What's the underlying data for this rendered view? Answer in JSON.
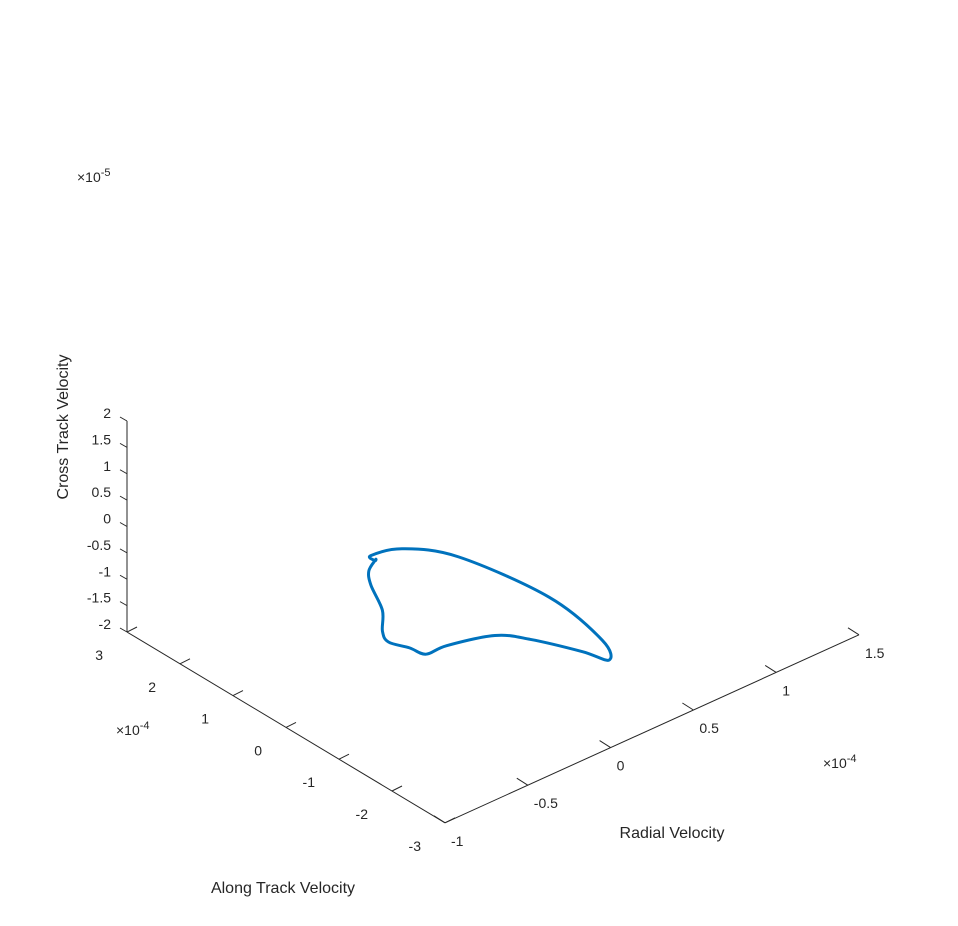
{
  "chart_data": {
    "type": "line",
    "projection": "3d",
    "title": "",
    "xlabel": "Radial Velocity",
    "ylabel": "Along Track Velocity",
    "zlabel": "Cross Track Velocity",
    "x_exponent": "×10-4",
    "y_exponent": "×10-4",
    "z_exponent": "×10-5",
    "x_exponent_base": "×10",
    "x_exponent_power": "-4",
    "y_exponent_base": "×10",
    "y_exponent_power": "-4",
    "z_exponent_base": "×10",
    "z_exponent_power": "-5",
    "xlim": [
      -1.0,
      1.5
    ],
    "ylim": [
      -3,
      3
    ],
    "zlim": [
      -2,
      2
    ],
    "x_ticks": [
      -1,
      -0.5,
      0,
      0.5,
      1,
      1.5
    ],
    "x_tick_labels": [
      "-1",
      "-0.5",
      "0",
      "0.5",
      "1",
      "1.5"
    ],
    "y_ticks": [
      -3,
      -2,
      -1,
      0,
      1,
      2,
      3
    ],
    "y_tick_labels": [
      "-3",
      "-2",
      "-1",
      "0",
      "1",
      "2",
      "3"
    ],
    "z_ticks": [
      -2,
      -1.5,
      -1,
      -0.5,
      0,
      0.5,
      1,
      1.5,
      2
    ],
    "z_tick_labels": [
      "-2",
      "-1.5",
      "-1",
      "-0.5",
      "0",
      "0.5",
      "1",
      "1.5",
      "2"
    ],
    "grid": false,
    "series": [
      {
        "color": "#0072BD",
        "points": [
          [
            0.33,
            -1.94,
            -1.45
          ],
          [
            0.45,
            -1.44,
            -1.55
          ],
          [
            0.59,
            0.0,
            -1.8
          ],
          [
            0.57,
            1.65,
            -2.0
          ],
          [
            0.41,
            2.2,
            -1.95
          ],
          [
            0.2,
            2.15,
            -1.75
          ],
          [
            0.05,
            1.6,
            -1.3
          ],
          [
            -0.2,
            0.81,
            -0.45
          ],
          [
            -0.5,
            0.0,
            0.25
          ],
          [
            -0.65,
            -0.51,
            0.5
          ],
          [
            -0.85,
            -1.35,
            0.82
          ],
          [
            -1.0,
            -1.82,
            0.92
          ],
          [
            -1.05,
            -2.09,
            0.95
          ],
          [
            -0.99,
            -2.3,
            0.88
          ],
          [
            -0.9,
            -2.33,
            0.65
          ],
          [
            -0.75,
            -2.25,
            0.55
          ],
          [
            -0.42,
            -2.13,
            0.2
          ],
          [
            -0.16,
            -1.99,
            -0.33
          ],
          [
            0.16,
            -1.97,
            -1.03
          ],
          [
            0.33,
            -1.94,
            -1.45
          ]
        ]
      }
    ]
  }
}
